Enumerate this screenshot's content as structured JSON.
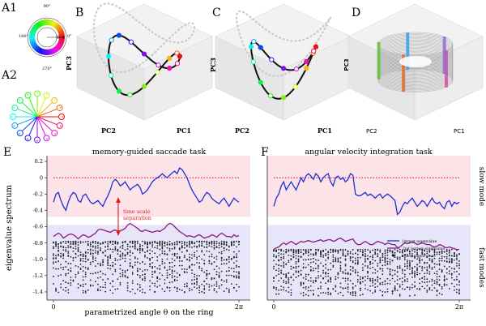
{
  "panels": {
    "A1": "A1",
    "A2": "A2",
    "B": "B",
    "C": "C",
    "D": "D",
    "E": "E",
    "F": "F"
  },
  "color_wheel": {
    "labels": [
      "90°",
      "180°",
      "0°",
      "270°"
    ],
    "marker": "θ"
  },
  "pca_axes": {
    "pc1": "PC1",
    "pc2": "PC2",
    "pc3": "PC3"
  },
  "chart_data": [
    {
      "type": "line",
      "title": "memory-guided saccade task",
      "ylabel": "eigenvalue spectrum",
      "xlabel": "parametrized angle θ on the ring",
      "x_ticks": [
        "0",
        "2π"
      ],
      "y_ticks": [
        "0.2",
        "0",
        "-0.2",
        "-0.4",
        "-0.6",
        "-0.8",
        "-1.0",
        "-1.2",
        "-1.4"
      ],
      "ylim": [
        -1.5,
        0.27
      ],
      "xlim": [
        0,
        6.283
      ],
      "reference_line_y": 0,
      "annotation": "time scale separation",
      "series": [
        {
          "name": "largest eigenvalue",
          "color": "#1f2fd6",
          "y": [
            -0.3,
            -0.2,
            -0.18,
            -0.28,
            -0.35,
            -0.4,
            -0.3,
            -0.22,
            -0.18,
            -0.2,
            -0.28,
            -0.3,
            -0.22,
            -0.2,
            -0.25,
            -0.3,
            -0.32,
            -0.3,
            -0.28,
            -0.32,
            -0.35,
            -0.28,
            -0.22,
            -0.15,
            -0.05,
            -0.02,
            -0.05,
            -0.1,
            -0.08,
            -0.05,
            -0.1,
            -0.15,
            -0.12,
            -0.1,
            -0.08,
            -0.12,
            -0.2,
            -0.18,
            -0.15,
            -0.1,
            -0.05,
            -0.02,
            0.0,
            0.02,
            0.05,
            0.02,
            0.0,
            0.03,
            0.06,
            0.08,
            0.05,
            0.12,
            0.1,
            0.05,
            0.0,
            -0.08,
            -0.15,
            -0.2,
            -0.25,
            -0.3,
            -0.28,
            -0.22,
            -0.18,
            -0.2,
            -0.25,
            -0.28,
            -0.3,
            -0.32,
            -0.28,
            -0.25,
            -0.3,
            -0.35,
            -0.3,
            -0.25,
            -0.28,
            -0.3
          ]
        },
        {
          "name": "2nd largest eigenvalue",
          "color": "#8b1a7d",
          "y": [
            -0.72,
            -0.7,
            -0.68,
            -0.7,
            -0.74,
            -0.72,
            -0.7,
            -0.69,
            -0.7,
            -0.72,
            -0.75,
            -0.72,
            -0.7,
            -0.71,
            -0.73,
            -0.72,
            -0.7,
            -0.68,
            -0.64,
            -0.63,
            -0.64,
            -0.65,
            -0.66,
            -0.67,
            -0.65,
            -0.64,
            -0.66,
            -0.65,
            -0.64,
            -0.62,
            -0.58,
            -0.56,
            -0.58,
            -0.6,
            -0.62,
            -0.65,
            -0.66,
            -0.64,
            -0.65,
            -0.66,
            -0.67,
            -0.66,
            -0.65,
            -0.66,
            -0.64,
            -0.62,
            -0.58,
            -0.56,
            -0.57,
            -0.6,
            -0.63,
            -0.66,
            -0.68,
            -0.7,
            -0.72,
            -0.71,
            -0.72,
            -0.73,
            -0.71,
            -0.7,
            -0.72,
            -0.74,
            -0.73,
            -0.72,
            -0.7,
            -0.71,
            -0.73,
            -0.7,
            -0.68,
            -0.7,
            -0.72,
            -0.72,
            -0.73,
            -0.7,
            -0.72,
            -0.71
          ]
        }
      ],
      "other_eigenvalues_range": [
        -1.42,
        -0.78
      ],
      "bands": {
        "slow": {
          "from": -0.48,
          "to": 0.27,
          "color": "#fbe3e8"
        },
        "fast": {
          "from": -1.5,
          "to": -0.58,
          "color": "#e7e5fa"
        }
      }
    },
    {
      "type": "line",
      "title": "angular velocity integration task",
      "xlabel": "",
      "x_ticks": [
        "0",
        "2π"
      ],
      "ylim": [
        -1.5,
        0.27
      ],
      "xlim": [
        0,
        6.283
      ],
      "reference_line_y": 0,
      "legend": {
        "entries": [
          "largest eigenvalue",
          "2nd largest eigenvalue",
          "other eigenvalues"
        ],
        "placement": "right"
      },
      "series": [
        {
          "name": "largest eigenvalue",
          "color": "#1f2fd6",
          "y": [
            -0.35,
            -0.25,
            -0.2,
            -0.1,
            -0.05,
            -0.15,
            -0.1,
            -0.05,
            -0.1,
            -0.15,
            -0.08,
            0.0,
            -0.05,
            0.02,
            0.05,
            0.02,
            -0.02,
            0.05,
            0.02,
            -0.05,
            0.0,
            0.03,
            0.05,
            -0.05,
            -0.1,
            0.0,
            0.02,
            -0.02,
            0.0,
            -0.05,
            -0.02,
            0.05,
            0.03,
            -0.2,
            -0.22,
            -0.22,
            -0.2,
            -0.18,
            -0.22,
            -0.2,
            -0.22,
            -0.25,
            -0.22,
            -0.2,
            -0.25,
            -0.22,
            -0.2,
            -0.22,
            -0.25,
            -0.28,
            -0.45,
            -0.42,
            -0.35,
            -0.3,
            -0.32,
            -0.28,
            -0.25,
            -0.3,
            -0.35,
            -0.32,
            -0.28,
            -0.3,
            -0.35,
            -0.3,
            -0.25,
            -0.3,
            -0.32,
            -0.3,
            -0.35,
            -0.38,
            -0.3,
            -0.28,
            -0.35,
            -0.3,
            -0.32,
            -0.3
          ]
        },
        {
          "name": "2nd largest eigenvalue",
          "color": "#8b1a7d",
          "y": [
            -0.88,
            -0.86,
            -0.85,
            -0.82,
            -0.8,
            -0.82,
            -0.8,
            -0.78,
            -0.8,
            -0.82,
            -0.8,
            -0.78,
            -0.79,
            -0.78,
            -0.77,
            -0.78,
            -0.79,
            -0.78,
            -0.77,
            -0.76,
            -0.78,
            -0.77,
            -0.76,
            -0.76,
            -0.78,
            -0.77,
            -0.75,
            -0.74,
            -0.76,
            -0.78,
            -0.77,
            -0.76,
            -0.75,
            -0.8,
            -0.82,
            -0.82,
            -0.8,
            -0.78,
            -0.8,
            -0.82,
            -0.82,
            -0.8,
            -0.78,
            -0.79,
            -0.8,
            -0.82,
            -0.8,
            -0.81,
            -0.82,
            -0.82,
            -0.86,
            -0.85,
            -0.82,
            -0.8,
            -0.81,
            -0.8,
            -0.79,
            -0.8,
            -0.82,
            -0.81,
            -0.8,
            -0.81,
            -0.82,
            -0.82,
            -0.84,
            -0.85,
            -0.84,
            -0.82,
            -0.83,
            -0.85,
            -0.86,
            -0.85,
            -0.86,
            -0.87,
            -0.88,
            -0.88
          ]
        }
      ],
      "other_eigenvalues_range": [
        -1.45,
        -0.88
      ],
      "bands": {
        "slow": {
          "from": -0.48,
          "to": 0.27,
          "color": "#fbe3e8"
        },
        "fast": {
          "from": -1.5,
          "to": -0.58,
          "color": "#e7e5fa"
        }
      }
    }
  ],
  "side_labels": {
    "slow": "slow mode",
    "fast": "fast modes"
  },
  "colors": {
    "ref_line": "#e01b1b",
    "annotation": "#e01b1b",
    "ghost": "#c9c9c9",
    "trajectory": "#111111"
  }
}
